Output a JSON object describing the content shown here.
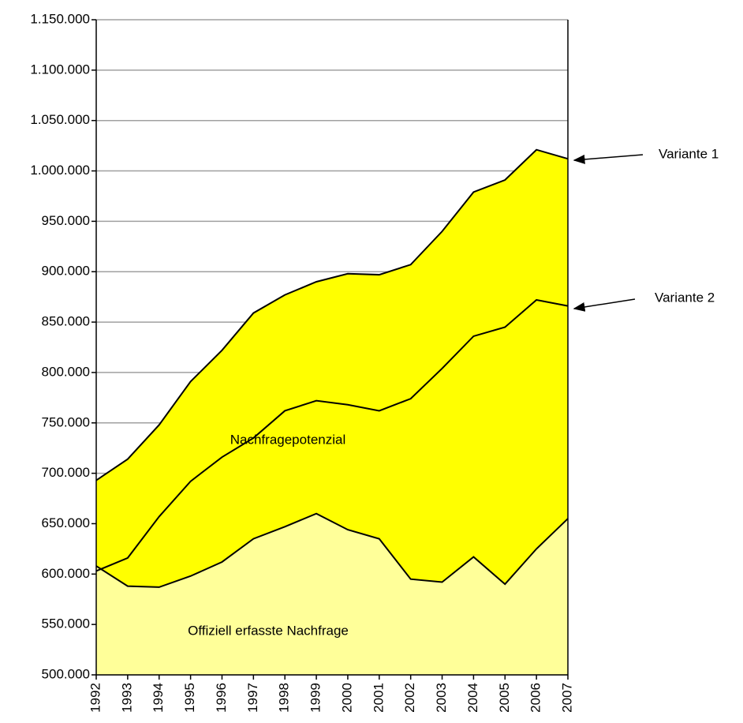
{
  "chart_data": {
    "type": "area",
    "categories": [
      "1992",
      "1993",
      "1994",
      "1995",
      "1996",
      "1997",
      "1998",
      "1999",
      "2000",
      "2001",
      "2002",
      "2003",
      "2004",
      "2005",
      "2006",
      "2007"
    ],
    "series": [
      {
        "name": "Offiziell erfasste Nachfrage",
        "color": "#ffff99",
        "values": [
          608000,
          588000,
          587000,
          598000,
          612000,
          635000,
          647000,
          660000,
          644000,
          635000,
          595000,
          592000,
          617000,
          590000,
          625000,
          655000
        ]
      },
      {
        "name": "Variante 1",
        "color": "#ffff00",
        "values": [
          693000,
          714000,
          748000,
          791000,
          822000,
          859000,
          877000,
          890000,
          898000,
          897000,
          907000,
          940000,
          979000,
          991000,
          1021000,
          1012000
        ]
      },
      {
        "name": "Variante 2",
        "values": [
          603000,
          616000,
          657000,
          692000,
          716000,
          735000,
          762000,
          772000,
          768000,
          762000,
          774000,
          804000,
          836000,
          845000,
          872000,
          866000
        ]
      }
    ],
    "annotations": [
      "Nachfragepotenzial"
    ],
    "ylim": [
      500000,
      1150000
    ],
    "yticks": [
      {
        "value": 500000,
        "label": "500.000"
      },
      {
        "value": 550000,
        "label": "550.000"
      },
      {
        "value": 600000,
        "label": "600.000"
      },
      {
        "value": 650000,
        "label": "650.000"
      },
      {
        "value": 700000,
        "label": "700.000"
      },
      {
        "value": 750000,
        "label": "750.000"
      },
      {
        "value": 800000,
        "label": "800.000"
      },
      {
        "value": 850000,
        "label": "850.000"
      },
      {
        "value": 900000,
        "label": "900.000"
      },
      {
        "value": 950000,
        "label": "950.000"
      },
      {
        "value": 1000000,
        "label": "1.000.000"
      },
      {
        "value": 1050000,
        "label": "1.050.000"
      },
      {
        "value": 1100000,
        "label": "1.100.000"
      },
      {
        "value": 1150000,
        "label": "1.150.000"
      }
    ],
    "grid": true
  }
}
